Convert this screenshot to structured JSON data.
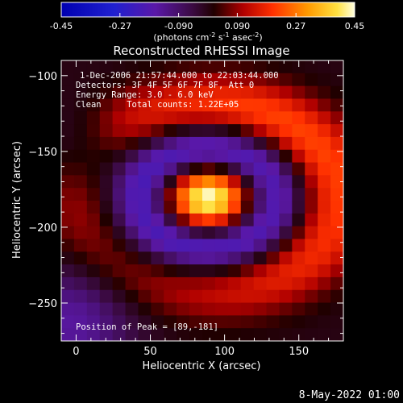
{
  "colorbar": {
    "ticks": [
      "-0.45",
      "-0.27",
      "-0.090",
      "0.090",
      "0.27",
      "0.45"
    ],
    "tick_values": [
      -0.45,
      -0.27,
      -0.09,
      0.09,
      0.27,
      0.45
    ],
    "unit_parts": [
      "(photons cm",
      "-2",
      " s",
      "-1",
      " asec",
      "-2",
      ")"
    ]
  },
  "chart_data": {
    "type": "heatmap",
    "title": "Reconstructed RHESSI Image",
    "xlabel": "Heliocentric X (arcsec)",
    "ylabel": "Heliocentric Y (arcsec)",
    "x_ticks": [
      "0",
      "50",
      "100",
      "150"
    ],
    "x_tick_values": [
      0,
      50,
      100,
      150
    ],
    "y_ticks": [
      "−100",
      "−150",
      "−200",
      "−250"
    ],
    "y_tick_values": [
      -100,
      -150,
      -200,
      -250
    ],
    "xlim": [
      -10,
      180
    ],
    "ylim": [
      -275,
      -90
    ],
    "zlim": [
      -0.45,
      0.45
    ],
    "colormap": "rhessi-dark-blue-purple-red-yellow-white",
    "annotations": [
      "1-Dec-2006 21:57:44.000 to 22:03:44.000",
      "Detectors: 3F 4F 5F 6F 7F 8F, Att 0",
      "Energy Range: 3.0 - 6.0 keV",
      "Clean     Total counts: 1.22E+05"
    ],
    "peak_label": "Position of Peak = [89,-181]",
    "peak": [
      89,
      -181
    ]
  },
  "timestamp": "8-May-2022 01:00"
}
